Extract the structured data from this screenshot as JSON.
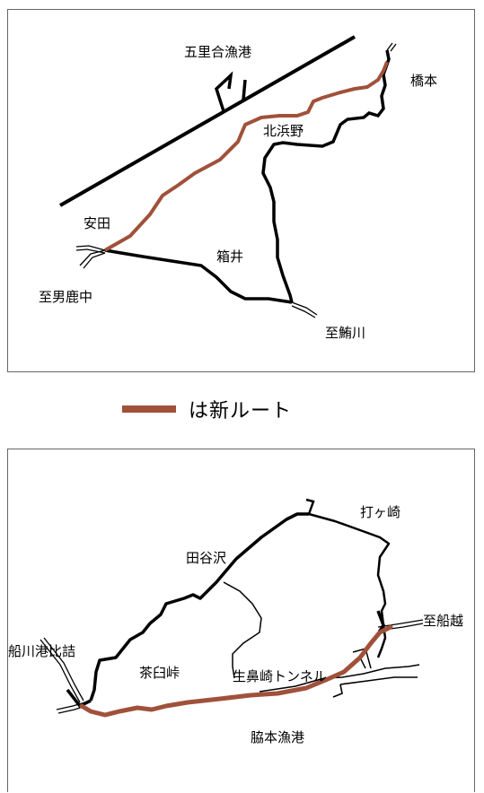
{
  "map1": {
    "labels": {
      "goriai_port": "五里合漁港",
      "hashimoto": "橋本",
      "kitahamano": "北浜野",
      "yasuda": "安田",
      "hakoi": "箱井",
      "to_oga_naka": "至男鹿中",
      "to_ajigasawa": "至鮪川"
    }
  },
  "legend": {
    "text": "は新ルート",
    "color": "#a0513a"
  },
  "map2": {
    "labels": {
      "to_ugatsuzaki": "打ヶ崎",
      "tayazawa": "田谷沢",
      "to_funakoshi": "至船越",
      "funakawa_hizume": "船川港比詰",
      "chausu_toge": "茶臼峠",
      "ikihana_tunnel": "生鼻崎トンネル",
      "wakimoto_port": "脇本漁港"
    }
  },
  "colors": {
    "new_route": "#a0513a",
    "road": "#000000"
  }
}
